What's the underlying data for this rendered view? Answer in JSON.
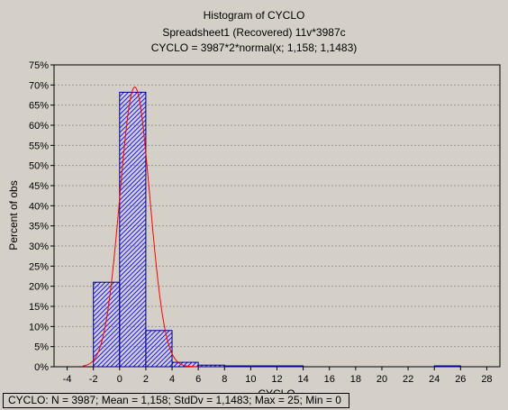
{
  "chart_data": {
    "type": "bar",
    "title": "Histogram of CYCLO",
    "subtitle": "Spreadsheet1   (Recovered) 11v*3987c",
    "fit_label": "CYCLO = 3987*2*normal(x; 1,158; 1,1483)",
    "xlabel": "CYCLO",
    "ylabel": "Percent of obs",
    "xlim": [
      -5,
      29
    ],
    "ylim": [
      0,
      75
    ],
    "x_ticks": [
      -4,
      -2,
      0,
      2,
      4,
      6,
      8,
      10,
      12,
      14,
      16,
      18,
      20,
      22,
      24,
      26,
      28
    ],
    "y_ticks": [
      "0%",
      "5%",
      "10%",
      "15%",
      "20%",
      "25%",
      "30%",
      "35%",
      "40%",
      "45%",
      "50%",
      "55%",
      "60%",
      "65%",
      "70%",
      "75%"
    ],
    "grid": true,
    "bins": [
      {
        "from": -2,
        "to": 0,
        "value": 21
      },
      {
        "from": 0,
        "to": 2,
        "value": 68.2
      },
      {
        "from": 2,
        "to": 4,
        "value": 9
      },
      {
        "from": 4,
        "to": 6,
        "value": 1.1
      },
      {
        "from": 6,
        "to": 8,
        "value": 0.4
      },
      {
        "from": 8,
        "to": 10,
        "value": 0.15
      },
      {
        "from": 10,
        "to": 12,
        "value": 0.1
      },
      {
        "from": 12,
        "to": 14,
        "value": 0.05
      },
      {
        "from": 24,
        "to": 26,
        "value": 0.05
      }
    ],
    "normal_fit": {
      "n": 3987,
      "bin_width": 2,
      "mean": 1.158,
      "sd": 1.1483
    },
    "colors": {
      "bar_stroke": "#00008b",
      "hatch": "#1a1aff",
      "curve": "#ff0000",
      "grid": "#999999"
    }
  },
  "stats_text": "CYCLO:   N = 3987; Mean = 1,158; StdDv = 1,1483; Max = 25; Min = 0"
}
